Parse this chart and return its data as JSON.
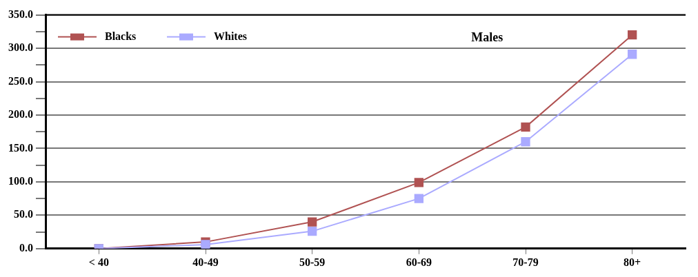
{
  "chart_data": {
    "type": "line",
    "title": "Males",
    "categories": [
      "< 40",
      "40-49",
      "50-59",
      "60-69",
      "70-79",
      "80+"
    ],
    "series": [
      {
        "name": "Blacks",
        "color": "#b05252",
        "values": [
          0,
          10,
          40,
          99,
          182,
          320
        ]
      },
      {
        "name": "Whites",
        "color": "#aaaaff",
        "values": [
          0,
          6,
          26,
          75,
          160,
          291
        ]
      }
    ],
    "ylim": [
      0,
      350
    ],
    "yticks": [
      {
        "value": 0,
        "label": "0.0"
      },
      {
        "value": 25,
        "label": null
      },
      {
        "value": 50,
        "label": "50.0"
      },
      {
        "value": 75,
        "label": null
      },
      {
        "value": 100,
        "label": "100.0"
      },
      {
        "value": 125,
        "label": null
      },
      {
        "value": 150,
        "label": "150.0"
      },
      {
        "value": 175,
        "label": null
      },
      {
        "value": 200,
        "label": "200.0"
      },
      {
        "value": 225,
        "label": null
      },
      {
        "value": 250,
        "label": "250.0"
      },
      {
        "value": 275,
        "label": null
      },
      {
        "value": 300,
        "label": "300.0"
      },
      {
        "value": 325,
        "label": null
      },
      {
        "value": 350,
        "label": "350.0"
      }
    ],
    "grid": "y",
    "legend": "top left",
    "marker": "square",
    "line_style": "solid"
  }
}
